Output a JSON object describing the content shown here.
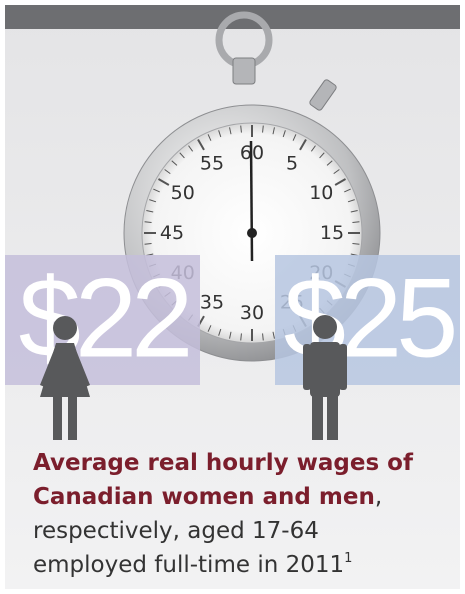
{
  "stopwatch": {
    "dial_numbers": [
      60,
      5,
      10,
      15,
      20,
      25,
      30,
      35,
      40,
      45,
      50,
      55
    ]
  },
  "wages": [
    {
      "amount": "$22"
    },
    {
      "amount": "$25"
    }
  ],
  "caption": {
    "line1": "Average real hourly wages of",
    "line2_bold": "Canadian women and men",
    "line2_rest": ",",
    "line3": "respectively, aged 17-64",
    "line4": "employed full-time in 2011",
    "footnote": "1"
  }
}
